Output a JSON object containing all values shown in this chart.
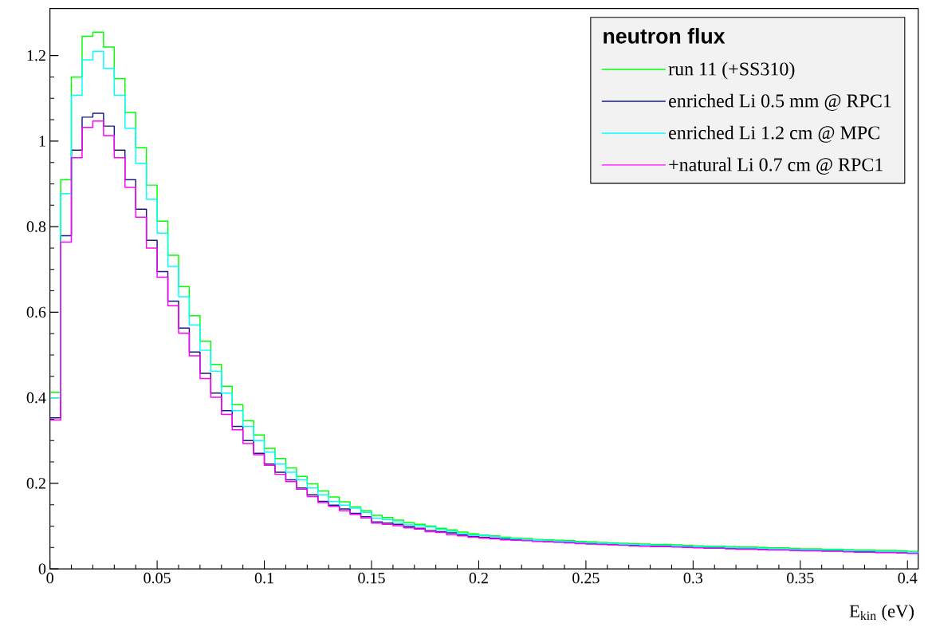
{
  "chart_data": {
    "type": "histogram",
    "legend_title": "neutron flux",
    "xlabel": "E$_{kin}$ (eV)",
    "bins": [
      0,
      0.005,
      0.01,
      0.015,
      0.02,
      0.025,
      0.03,
      0.035,
      0.04,
      0.045,
      0.05,
      0.055,
      0.06,
      0.065,
      0.07,
      0.075,
      0.08,
      0.085,
      0.09,
      0.095,
      0.1,
      0.105,
      0.11,
      0.115,
      0.12,
      0.125,
      0.13,
      0.135,
      0.14,
      0.145,
      0.15,
      0.155,
      0.16,
      0.165,
      0.17,
      0.175,
      0.18,
      0.185,
      0.19,
      0.195,
      0.2,
      0.205,
      0.21,
      0.215,
      0.22,
      0.225,
      0.23,
      0.235,
      0.24,
      0.245,
      0.25,
      0.255,
      0.26,
      0.265,
      0.27,
      0.275,
      0.28,
      0.285,
      0.29,
      0.295,
      0.3,
      0.305,
      0.31,
      0.315,
      0.32,
      0.325,
      0.33,
      0.335,
      0.34,
      0.345,
      0.35,
      0.355,
      0.36,
      0.365,
      0.37,
      0.375,
      0.38,
      0.385,
      0.39,
      0.395,
      0.4,
      0.405
    ],
    "series": [
      {
        "name": "run 11 (+SS310)",
        "color": "#00ff00",
        "values": [
          0.413,
          0.91,
          1.15,
          1.245,
          1.255,
          1.22,
          1.146,
          1.067,
          0.985,
          0.897,
          0.813,
          0.733,
          0.66,
          0.592,
          0.532,
          0.478,
          0.427,
          0.384,
          0.346,
          0.313,
          0.282,
          0.258,
          0.236,
          0.216,
          0.199,
          0.182,
          0.168,
          0.157,
          0.145,
          0.136,
          0.125,
          0.12,
          0.114,
          0.108,
          0.104,
          0.1,
          0.095,
          0.091,
          0.086,
          0.082,
          0.079,
          0.077,
          0.074,
          0.072,
          0.071,
          0.069,
          0.068,
          0.067,
          0.066,
          0.064,
          0.063,
          0.062,
          0.061,
          0.06,
          0.059,
          0.058,
          0.057,
          0.057,
          0.056,
          0.055,
          0.054,
          0.053,
          0.053,
          0.052,
          0.051,
          0.051,
          0.05,
          0.049,
          0.049,
          0.048,
          0.047,
          0.047,
          0.046,
          0.046,
          0.045,
          0.044,
          0.044,
          0.043,
          0.043,
          0.042,
          0.041
        ]
      },
      {
        "name": "enriched Li 0.5 mm @ RPC1",
        "color": "#1a1a80",
        "values": [
          0.353,
          0.779,
          0.979,
          1.056,
          1.065,
          1.035,
          0.979,
          0.91,
          0.841,
          0.768,
          0.695,
          0.626,
          0.563,
          0.507,
          0.457,
          0.411,
          0.37,
          0.333,
          0.3,
          0.27,
          0.245,
          0.226,
          0.208,
          0.189,
          0.173,
          0.158,
          0.149,
          0.14,
          0.13,
          0.122,
          0.11,
          0.107,
          0.104,
          0.099,
          0.095,
          0.09,
          0.087,
          0.084,
          0.079,
          0.076,
          0.074,
          0.072,
          0.07,
          0.068,
          0.067,
          0.065,
          0.064,
          0.063,
          0.062,
          0.06,
          0.059,
          0.058,
          0.057,
          0.056,
          0.055,
          0.054,
          0.053,
          0.053,
          0.052,
          0.051,
          0.05,
          0.049,
          0.049,
          0.048,
          0.047,
          0.047,
          0.046,
          0.045,
          0.045,
          0.044,
          0.043,
          0.043,
          0.042,
          0.042,
          0.041,
          0.04,
          0.04,
          0.039,
          0.039,
          0.038,
          0.037
        ]
      },
      {
        "name": "enriched Li 1.2 cm @ MPC",
        "color": "#00ffff",
        "values": [
          0.4,
          0.877,
          1.107,
          1.19,
          1.21,
          1.17,
          1.107,
          1.03,
          0.948,
          0.864,
          0.785,
          0.707,
          0.636,
          0.57,
          0.511,
          0.462,
          0.411,
          0.37,
          0.333,
          0.3,
          0.273,
          0.245,
          0.226,
          0.208,
          0.189,
          0.173,
          0.158,
          0.149,
          0.142,
          0.132,
          0.118,
          0.115,
          0.11,
          0.103,
          0.101,
          0.098,
          0.092,
          0.088,
          0.082,
          0.079,
          0.078,
          0.076,
          0.072,
          0.07,
          0.069,
          0.067,
          0.066,
          0.065,
          0.064,
          0.062,
          0.061,
          0.06,
          0.059,
          0.058,
          0.057,
          0.056,
          0.055,
          0.055,
          0.054,
          0.053,
          0.052,
          0.051,
          0.051,
          0.05,
          0.049,
          0.049,
          0.048,
          0.047,
          0.047,
          0.046,
          0.045,
          0.045,
          0.044,
          0.044,
          0.043,
          0.042,
          0.042,
          0.041,
          0.041,
          0.04,
          0.039
        ]
      },
      {
        "name": "+natural Li 0.7 cm @ RPC1",
        "color": "#ff00ff",
        "values": [
          0.348,
          0.764,
          0.961,
          1.032,
          1.047,
          1.013,
          0.961,
          0.892,
          0.822,
          0.75,
          0.682,
          0.615,
          0.551,
          0.498,
          0.445,
          0.401,
          0.361,
          0.325,
          0.293,
          0.267,
          0.242,
          0.221,
          0.204,
          0.186,
          0.169,
          0.155,
          0.146,
          0.136,
          0.127,
          0.119,
          0.107,
          0.104,
          0.101,
          0.096,
          0.093,
          0.087,
          0.085,
          0.08,
          0.077,
          0.074,
          0.072,
          0.07,
          0.068,
          0.067,
          0.066,
          0.064,
          0.063,
          0.062,
          0.061,
          0.059,
          0.058,
          0.057,
          0.056,
          0.055,
          0.054,
          0.053,
          0.052,
          0.052,
          0.051,
          0.05,
          0.049,
          0.048,
          0.048,
          0.047,
          0.046,
          0.046,
          0.045,
          0.044,
          0.044,
          0.043,
          0.042,
          0.042,
          0.041,
          0.041,
          0.04,
          0.039,
          0.039,
          0.038,
          0.038,
          0.037,
          0.036
        ]
      }
    ],
    "xlim": [
      0,
      0.405
    ],
    "ylim": [
      0,
      1.31
    ],
    "xticks": [
      0,
      0.05,
      0.1,
      0.15,
      0.2,
      0.25,
      0.3,
      0.35,
      0.4
    ],
    "yticks": [
      0,
      0.2,
      0.4,
      0.6,
      0.8,
      1,
      1.2
    ],
    "grid": false,
    "legend": "top right",
    "marker": "none",
    "line_style": "solid"
  }
}
